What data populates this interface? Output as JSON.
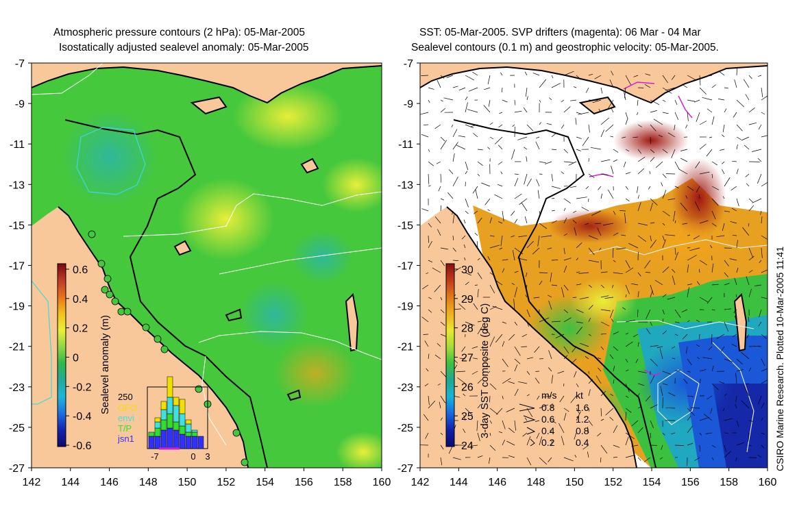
{
  "left_map": {
    "title_line1": "Atmospheric pressure contours (2 hPa): 05-Mar-2005",
    "title_line2": "Isostatically adjusted sealevel anomaly: 05-Mar-2005",
    "x_ticks": [
      "142",
      "144",
      "146",
      "148",
      "150",
      "152",
      "154",
      "156",
      "158",
      "160"
    ],
    "y_ticks": [
      "-7",
      "-9",
      "-11",
      "-13",
      "-15",
      "-17",
      "-19",
      "-21",
      "-23",
      "-25",
      "-27"
    ],
    "colorbar": {
      "label": "Sealevel anomaly (m)",
      "ticks": [
        "0.6",
        "0.4",
        "0.2",
        "0",
        "-0.2",
        "-0.4",
        "-0.6"
      ],
      "stops": [
        "#7a0a0a",
        "#c0392b",
        "#e8731a",
        "#f2c21a",
        "#e9f036",
        "#8fd646",
        "#2fb84b",
        "#23a89a",
        "#1fb6d8",
        "#1d6fe0",
        "#1422b0",
        "#0a0a6e"
      ]
    },
    "histogram": {
      "y_label": "250",
      "x_ticks": [
        "-7",
        "0",
        "3"
      ],
      "legend": [
        {
          "name": "GFO",
          "color": "#f0e000"
        },
        {
          "name": "envi",
          "color": "#40e0e0"
        },
        {
          "name": "T/P",
          "color": "#30e030"
        },
        {
          "name": "jsn1",
          "color": "#3030ff"
        }
      ],
      "bins": [
        {
          "jsn1": 60,
          "tp": 20,
          "envi": 0,
          "gfo": 0
        },
        {
          "jsn1": 60,
          "tp": 40,
          "envi": 30,
          "gfo": 20
        },
        {
          "jsn1": 90,
          "tp": 50,
          "envi": 50,
          "gfo": 40
        },
        {
          "jsn1": 100,
          "tp": 70,
          "envi": 80,
          "gfo": 100
        },
        {
          "jsn1": 90,
          "tp": 40,
          "envi": 80,
          "gfo": 40
        },
        {
          "jsn1": 70,
          "tp": 40,
          "envi": 60,
          "gfo": 70
        },
        {
          "jsn1": 60,
          "tp": 20,
          "envi": 40,
          "gfo": 20
        },
        {
          "jsn1": 60,
          "tp": 20,
          "envi": 10,
          "gfo": 0
        },
        {
          "jsn1": 60,
          "tp": 0,
          "envi": 0,
          "gfo": 0
        }
      ]
    }
  },
  "right_map": {
    "title_line1": "SST: 05-Mar-2005. SVP drifters (magenta): 06 Mar - 04 Mar",
    "title_line2": "Sealevel contours (0.1 m) and geostrophic velocity: 05-Mar-2005.",
    "x_ticks": [
      "142",
      "144",
      "146",
      "148",
      "150",
      "152",
      "154",
      "156",
      "158",
      "160"
    ],
    "y_ticks": [
      "-7",
      "-9",
      "-11",
      "-13",
      "-15",
      "-17",
      "-19",
      "-21",
      "-23",
      "-25",
      "-27"
    ],
    "colorbar": {
      "label": "3-day SST composite (deg C)",
      "ticks": [
        "30",
        "29",
        "28",
        "27",
        "26",
        "25",
        "24"
      ],
      "stops": [
        "#8a1010",
        "#c23a1a",
        "#e07a1a",
        "#f0b020",
        "#e8e830",
        "#a8dc38",
        "#3cc040",
        "#20a890",
        "#18b4d8",
        "#1868e0",
        "#1020a8",
        "#0a0a70"
      ]
    },
    "velocity_key": {
      "header_ms": "m/s",
      "header_kt": "kt",
      "rows": [
        {
          "ms": "0.8",
          "kt": "1.6"
        },
        {
          "ms": "0.6",
          "kt": "1.2"
        },
        {
          "ms": "0.4",
          "kt": "0.8"
        },
        {
          "ms": "0.2",
          "kt": "0.4"
        }
      ]
    }
  },
  "credit": "CSIRO Marine Research. Plotted 10-Mar-2005 11:41",
  "colors": {
    "land": "#f9c89a",
    "ocean_green": "#46c83c",
    "coast": "#000000"
  }
}
